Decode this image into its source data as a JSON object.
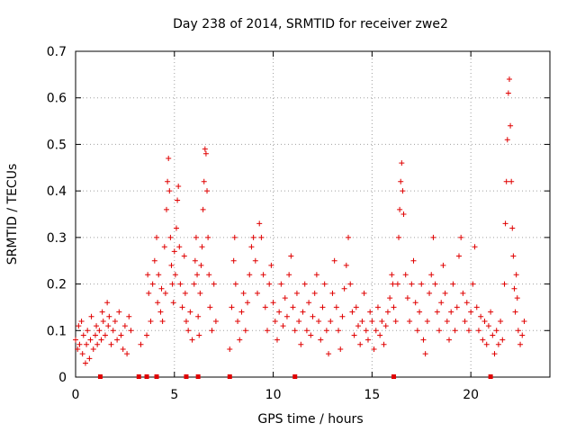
{
  "chart_data": {
    "type": "scatter",
    "title": "Day 238 of 2014, SRMTID for receiver zwe2",
    "xlabel": "GPS time / hours",
    "ylabel": "SRMTID / TECUs",
    "xlim": [
      0,
      24
    ],
    "ylim": [
      0,
      0.7
    ],
    "xticks": [
      0,
      5,
      10,
      15,
      20
    ],
    "xtick_labels": [
      "0",
      "5",
      "10",
      "15",
      "20"
    ],
    "yticks": [
      0,
      0.1,
      0.2,
      0.3,
      0.4,
      0.5,
      0.6,
      0.7
    ],
    "ytick_labels": [
      "0",
      "0.1",
      "0.2",
      "0.3",
      "0.4",
      "0.5",
      "0.6",
      "0.7"
    ],
    "grid": true,
    "marker": "+",
    "color": "#e00000",
    "series": [
      {
        "name": "SRMTID",
        "points": [
          [
            0.0,
            0.08
          ],
          [
            0.1,
            0.06
          ],
          [
            0.15,
            0.11
          ],
          [
            0.2,
            0.07
          ],
          [
            0.3,
            0.12
          ],
          [
            0.35,
            0.05
          ],
          [
            0.4,
            0.09
          ],
          [
            0.5,
            0.03
          ],
          [
            0.55,
            0.07
          ],
          [
            0.6,
            0.1
          ],
          [
            0.7,
            0.04
          ],
          [
            0.75,
            0.08
          ],
          [
            0.8,
            0.13
          ],
          [
            0.9,
            0.06
          ],
          [
            1.0,
            0.09
          ],
          [
            1.05,
            0.11
          ],
          [
            1.1,
            0.07
          ],
          [
            1.2,
            0.1
          ],
          [
            1.3,
            0.08
          ],
          [
            1.35,
            0.14
          ],
          [
            1.4,
            0.12
          ],
          [
            1.5,
            0.09
          ],
          [
            1.6,
            0.16
          ],
          [
            1.65,
            0.11
          ],
          [
            1.7,
            0.13
          ],
          [
            1.8,
            0.07
          ],
          [
            1.9,
            0.1
          ],
          [
            2.0,
            0.12
          ],
          [
            2.1,
            0.08
          ],
          [
            2.2,
            0.14
          ],
          [
            2.3,
            0.09
          ],
          [
            2.4,
            0.06
          ],
          [
            2.5,
            0.11
          ],
          [
            2.6,
            0.05
          ],
          [
            2.7,
            0.13
          ],
          [
            2.8,
            0.1
          ],
          [
            3.3,
            0.07
          ],
          [
            3.6,
            0.09
          ],
          [
            3.65,
            0.22
          ],
          [
            3.7,
            0.18
          ],
          [
            3.8,
            0.12
          ],
          [
            3.9,
            0.2
          ],
          [
            4.0,
            0.25
          ],
          [
            4.1,
            0.3
          ],
          [
            4.15,
            0.16
          ],
          [
            4.2,
            0.22
          ],
          [
            4.3,
            0.14
          ],
          [
            4.35,
            0.19
          ],
          [
            4.4,
            0.12
          ],
          [
            4.5,
            0.28
          ],
          [
            4.55,
            0.18
          ],
          [
            4.6,
            0.36
          ],
          [
            4.65,
            0.42
          ],
          [
            4.7,
            0.47
          ],
          [
            4.75,
            0.4
          ],
          [
            4.8,
            0.3
          ],
          [
            4.85,
            0.24
          ],
          [
            4.9,
            0.2
          ],
          [
            4.95,
            0.16
          ],
          [
            5.0,
            0.27
          ],
          [
            5.05,
            0.22
          ],
          [
            5.1,
            0.32
          ],
          [
            5.15,
            0.38
          ],
          [
            5.2,
            0.41
          ],
          [
            5.25,
            0.28
          ],
          [
            5.3,
            0.2
          ],
          [
            5.4,
            0.15
          ],
          [
            5.5,
            0.26
          ],
          [
            5.55,
            0.18
          ],
          [
            5.6,
            0.12
          ],
          [
            5.7,
            0.1
          ],
          [
            5.8,
            0.14
          ],
          [
            5.9,
            0.08
          ],
          [
            6.0,
            0.2
          ],
          [
            6.05,
            0.25
          ],
          [
            6.1,
            0.3
          ],
          [
            6.15,
            0.22
          ],
          [
            6.2,
            0.13
          ],
          [
            6.25,
            0.09
          ],
          [
            6.3,
            0.18
          ],
          [
            6.35,
            0.24
          ],
          [
            6.4,
            0.28
          ],
          [
            6.45,
            0.36
          ],
          [
            6.5,
            0.42
          ],
          [
            6.55,
            0.49
          ],
          [
            6.6,
            0.48
          ],
          [
            6.65,
            0.4
          ],
          [
            6.7,
            0.3
          ],
          [
            6.75,
            0.22
          ],
          [
            6.8,
            0.15
          ],
          [
            6.9,
            0.1
          ],
          [
            7.0,
            0.2
          ],
          [
            7.1,
            0.12
          ],
          [
            7.8,
            0.06
          ],
          [
            7.9,
            0.15
          ],
          [
            8.0,
            0.25
          ],
          [
            8.05,
            0.3
          ],
          [
            8.1,
            0.2
          ],
          [
            8.2,
            0.12
          ],
          [
            8.3,
            0.08
          ],
          [
            8.4,
            0.14
          ],
          [
            8.5,
            0.18
          ],
          [
            8.6,
            0.1
          ],
          [
            8.7,
            0.16
          ],
          [
            8.8,
            0.22
          ],
          [
            8.9,
            0.28
          ],
          [
            9.0,
            0.3
          ],
          [
            9.1,
            0.25
          ],
          [
            9.2,
            0.18
          ],
          [
            9.3,
            0.33
          ],
          [
            9.4,
            0.3
          ],
          [
            9.5,
            0.22
          ],
          [
            9.6,
            0.15
          ],
          [
            9.7,
            0.1
          ],
          [
            9.8,
            0.2
          ],
          [
            9.9,
            0.24
          ],
          [
            10.0,
            0.16
          ],
          [
            10.1,
            0.12
          ],
          [
            10.2,
            0.08
          ],
          [
            10.3,
            0.14
          ],
          [
            10.4,
            0.2
          ],
          [
            10.5,
            0.11
          ],
          [
            10.6,
            0.17
          ],
          [
            10.7,
            0.13
          ],
          [
            10.8,
            0.22
          ],
          [
            10.9,
            0.26
          ],
          [
            11.0,
            0.15
          ],
          [
            11.1,
            0.1
          ],
          [
            11.2,
            0.18
          ],
          [
            11.3,
            0.12
          ],
          [
            11.4,
            0.07
          ],
          [
            11.5,
            0.14
          ],
          [
            11.6,
            0.2
          ],
          [
            11.7,
            0.1
          ],
          [
            11.8,
            0.16
          ],
          [
            11.9,
            0.09
          ],
          [
            12.0,
            0.13
          ],
          [
            12.1,
            0.18
          ],
          [
            12.2,
            0.22
          ],
          [
            12.3,
            0.12
          ],
          [
            12.4,
            0.08
          ],
          [
            12.5,
            0.15
          ],
          [
            12.6,
            0.2
          ],
          [
            12.7,
            0.1
          ],
          [
            12.8,
            0.05
          ],
          [
            12.9,
            0.12
          ],
          [
            13.0,
            0.18
          ],
          [
            13.1,
            0.25
          ],
          [
            13.2,
            0.15
          ],
          [
            13.3,
            0.1
          ],
          [
            13.4,
            0.06
          ],
          [
            13.5,
            0.13
          ],
          [
            13.6,
            0.19
          ],
          [
            13.7,
            0.24
          ],
          [
            13.8,
            0.3
          ],
          [
            13.9,
            0.2
          ],
          [
            14.0,
            0.14
          ],
          [
            14.1,
            0.09
          ],
          [
            14.2,
            0.15
          ],
          [
            14.3,
            0.11
          ],
          [
            14.4,
            0.07
          ],
          [
            14.5,
            0.12
          ],
          [
            14.6,
            0.18
          ],
          [
            14.7,
            0.1
          ],
          [
            14.8,
            0.08
          ],
          [
            14.9,
            0.14
          ],
          [
            15.0,
            0.12
          ],
          [
            15.1,
            0.06
          ],
          [
            15.2,
            0.1
          ],
          [
            15.3,
            0.15
          ],
          [
            15.4,
            0.09
          ],
          [
            15.5,
            0.12
          ],
          [
            15.6,
            0.07
          ],
          [
            15.7,
            0.11
          ],
          [
            15.8,
            0.14
          ],
          [
            15.9,
            0.17
          ],
          [
            16.0,
            0.22
          ],
          [
            16.05,
            0.2
          ],
          [
            16.1,
            0.15
          ],
          [
            16.2,
            0.12
          ],
          [
            16.3,
            0.2
          ],
          [
            16.35,
            0.3
          ],
          [
            16.4,
            0.36
          ],
          [
            16.45,
            0.42
          ],
          [
            16.5,
            0.46
          ],
          [
            16.55,
            0.4
          ],
          [
            16.6,
            0.35
          ],
          [
            16.7,
            0.22
          ],
          [
            16.8,
            0.17
          ],
          [
            16.9,
            0.12
          ],
          [
            17.0,
            0.2
          ],
          [
            17.1,
            0.25
          ],
          [
            17.2,
            0.16
          ],
          [
            17.3,
            0.1
          ],
          [
            17.4,
            0.14
          ],
          [
            17.5,
            0.2
          ],
          [
            17.6,
            0.08
          ],
          [
            17.7,
            0.05
          ],
          [
            17.8,
            0.12
          ],
          [
            17.9,
            0.18
          ],
          [
            18.0,
            0.22
          ],
          [
            18.1,
            0.3
          ],
          [
            18.2,
            0.2
          ],
          [
            18.3,
            0.14
          ],
          [
            18.4,
            0.1
          ],
          [
            18.5,
            0.16
          ],
          [
            18.6,
            0.24
          ],
          [
            18.7,
            0.18
          ],
          [
            18.8,
            0.12
          ],
          [
            18.9,
            0.08
          ],
          [
            19.0,
            0.14
          ],
          [
            19.1,
            0.2
          ],
          [
            19.2,
            0.1
          ],
          [
            19.3,
            0.15
          ],
          [
            19.4,
            0.26
          ],
          [
            19.5,
            0.3
          ],
          [
            19.6,
            0.18
          ],
          [
            19.7,
            0.12
          ],
          [
            19.8,
            0.16
          ],
          [
            19.9,
            0.1
          ],
          [
            20.0,
            0.14
          ],
          [
            20.1,
            0.2
          ],
          [
            20.2,
            0.28
          ],
          [
            20.3,
            0.15
          ],
          [
            20.4,
            0.1
          ],
          [
            20.5,
            0.13
          ],
          [
            20.6,
            0.08
          ],
          [
            20.7,
            0.12
          ],
          [
            20.8,
            0.07
          ],
          [
            20.9,
            0.11
          ],
          [
            21.0,
            0.14
          ],
          [
            21.1,
            0.09
          ],
          [
            21.2,
            0.05
          ],
          [
            21.3,
            0.1
          ],
          [
            21.4,
            0.07
          ],
          [
            21.5,
            0.12
          ],
          [
            21.6,
            0.08
          ],
          [
            21.7,
            0.2
          ],
          [
            21.75,
            0.33
          ],
          [
            21.8,
            0.42
          ],
          [
            21.85,
            0.51
          ],
          [
            21.9,
            0.61
          ],
          [
            21.95,
            0.64
          ],
          [
            22.0,
            0.54
          ],
          [
            22.05,
            0.42
          ],
          [
            22.1,
            0.32
          ],
          [
            22.15,
            0.26
          ],
          [
            22.2,
            0.19
          ],
          [
            22.25,
            0.14
          ],
          [
            22.3,
            0.22
          ],
          [
            22.35,
            0.17
          ],
          [
            22.4,
            0.1
          ],
          [
            22.5,
            0.07
          ],
          [
            22.6,
            0.09
          ],
          [
            22.7,
            0.12
          ]
        ]
      }
    ],
    "gaps": [
      1.25,
      3.2,
      3.6,
      4.1,
      5.6,
      6.2,
      7.8,
      11.1,
      16.1,
      21.0
    ]
  }
}
